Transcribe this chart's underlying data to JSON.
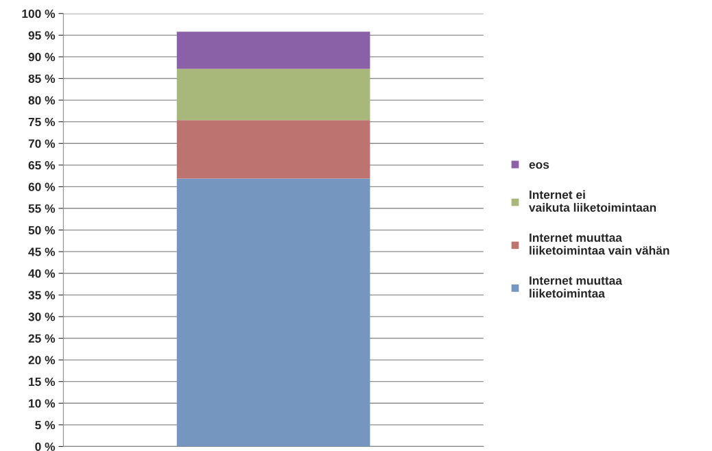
{
  "chart_data": {
    "type": "bar",
    "stacked": true,
    "categories": [
      null
    ],
    "series": [
      {
        "name": "Internet muuttaa liiketoimintaa",
        "color": "#7597bf",
        "values": [
          61.9
        ]
      },
      {
        "name": "Internet muuttaa liiketoimintaa vain vähän",
        "color": "#bd7471",
        "values": [
          13.5
        ]
      },
      {
        "name": "Internet ei vaikuta liiketoimintaan",
        "color": "#a8b87b",
        "values": [
          11.8
        ]
      },
      {
        "name": "eos",
        "color": "#8a61a6",
        "values": [
          8.6
        ]
      }
    ],
    "ylim": [
      0,
      100
    ],
    "yticks": [
      {
        "value": 0,
        "label": "0 %"
      },
      {
        "value": 5,
        "label": "5 %"
      },
      {
        "value": 10,
        "label": "10 %"
      },
      {
        "value": 15,
        "label": "15 %"
      },
      {
        "value": 20,
        "label": "20 %"
      },
      {
        "value": 25,
        "label": "25 %"
      },
      {
        "value": 30,
        "label": "30 %"
      },
      {
        "value": 35,
        "label": "35 %"
      },
      {
        "value": 40,
        "label": "40 %"
      },
      {
        "value": 45,
        "label": "45 %"
      },
      {
        "value": 50,
        "label": "50 %"
      },
      {
        "value": 55,
        "label": "55 %"
      },
      {
        "value": 60,
        "label": "60 %"
      },
      {
        "value": 65,
        "label": "65 %"
      },
      {
        "value": 70,
        "label": "70 %"
      },
      {
        "value": 75,
        "label": "75 %"
      },
      {
        "value": 80,
        "label": "80 %"
      },
      {
        "value": 85,
        "label": "85 %"
      },
      {
        "value": 90,
        "label": "90 %"
      },
      {
        "value": 95,
        "label": "95 %"
      },
      {
        "value": 100,
        "label": "100 %"
      }
    ],
    "grid": "y",
    "legend": "right"
  }
}
